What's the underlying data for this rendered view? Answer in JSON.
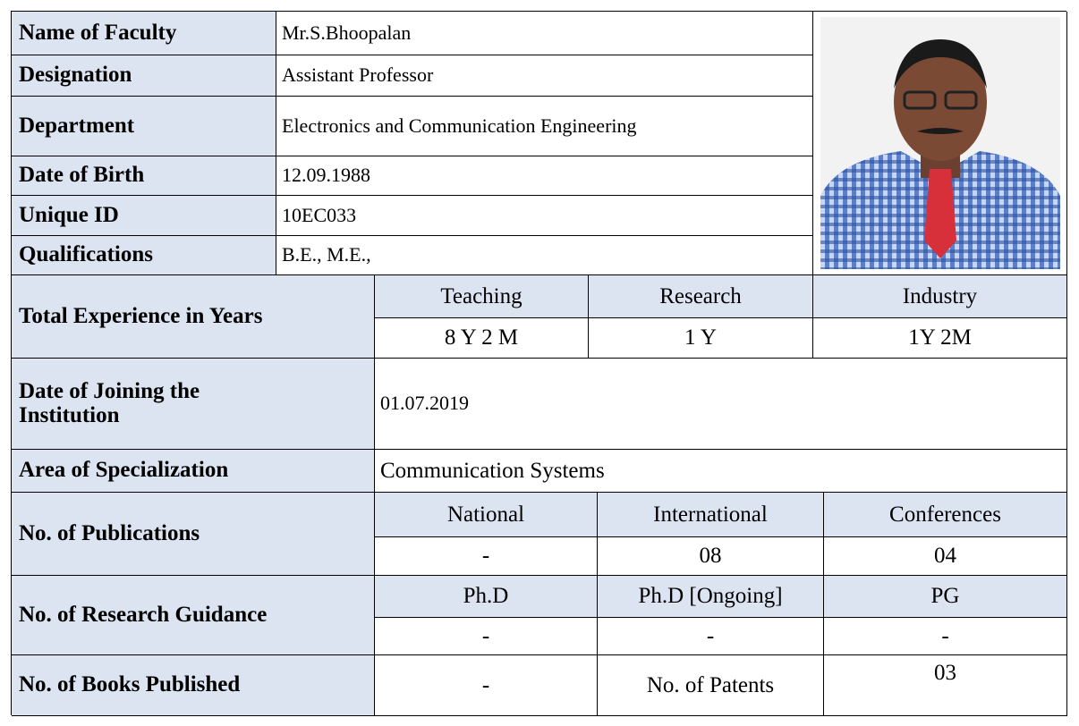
{
  "name": {
    "label": "Name of Faculty",
    "value": "Mr.S.Bhoopalan"
  },
  "designation": {
    "label": "Designation",
    "value": "Assistant Professor"
  },
  "department": {
    "label": "Department",
    "value": "Electronics and Communication Engineering"
  },
  "date_of_birth": {
    "label": "Date of Birth",
    "value": "12.09.1988"
  },
  "unique_id": {
    "label": "Unique ID",
    "value": "10EC033"
  },
  "qualifications": {
    "label": "Qualifications",
    "value": "B.E., M.E.,"
  },
  "experience": {
    "label": "Total Experience in Years",
    "headers": [
      "Teaching",
      "Research",
      "Industry"
    ],
    "values": [
      "8 Y 2 M",
      "1 Y",
      "1Y 2M"
    ]
  },
  "date_of_joining": {
    "label": "Date of Joining the Institution",
    "value": "01.07.2019"
  },
  "specialization": {
    "label": "Area of Specialization",
    "value": "Communication Systems"
  },
  "publications": {
    "label": "No. of  Publications",
    "headers": [
      "National",
      "International",
      "Conferences"
    ],
    "values": [
      "-",
      "08",
      "04"
    ]
  },
  "research_guidance": {
    "label": "No. of Research Guidance",
    "headers": [
      "Ph.D",
      "Ph.D [Ongoing]",
      "PG"
    ],
    "values": [
      "-",
      "-",
      "-"
    ]
  },
  "books": {
    "label": "No. of Books Published",
    "value": "-",
    "patents_label": "No. of Patents",
    "patents_value": "03"
  }
}
